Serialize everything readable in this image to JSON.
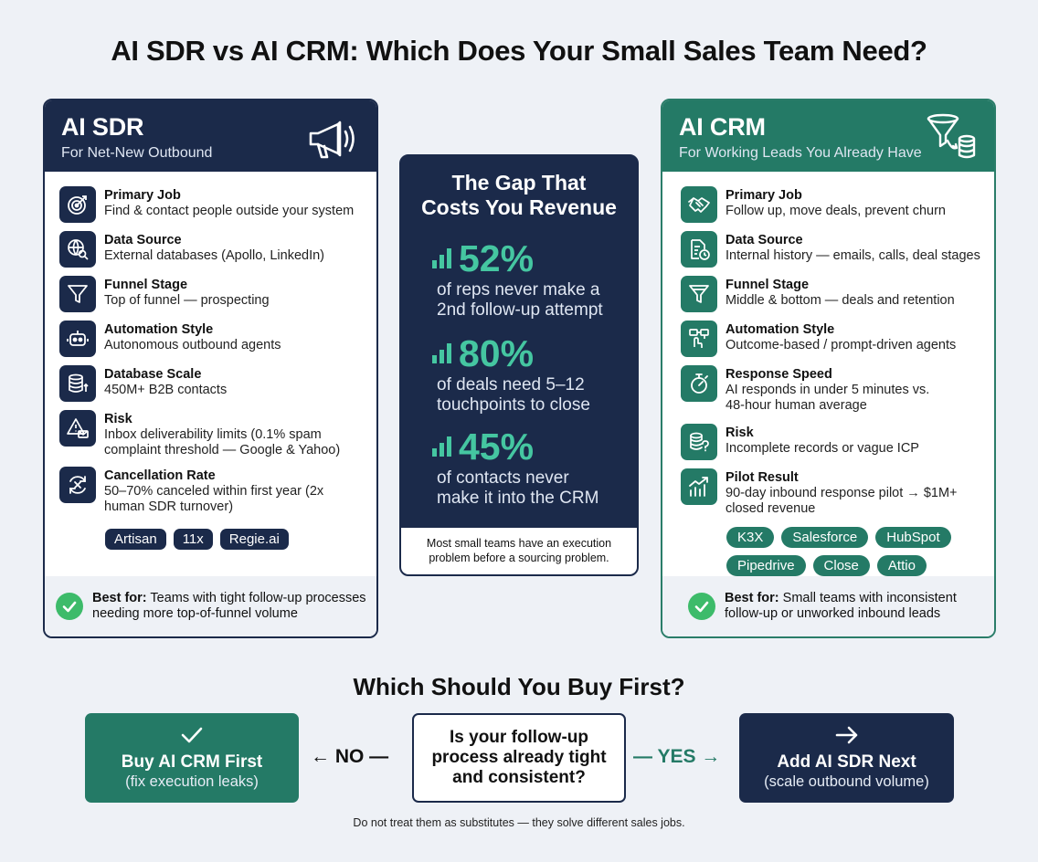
{
  "title": "AI SDR vs AI CRM: Which Does Your Small Sales Team Need?",
  "sdr": {
    "title": "AI SDR",
    "subtitle": "For Net-New Outbound",
    "items": [
      {
        "label": "Primary Job",
        "value": "Find & contact people outside your system",
        "icon": "target-icon"
      },
      {
        "label": "Data Source",
        "value": "External databases (Apollo, LinkedIn)",
        "icon": "globe-search-icon"
      },
      {
        "label": "Funnel Stage",
        "value": "Top of funnel — prospecting",
        "icon": "funnel-icon"
      },
      {
        "label": "Automation Style",
        "value": "Autonomous outbound agents",
        "icon": "robot-icon"
      },
      {
        "label": "Database Scale",
        "value": "450M+ B2B contacts",
        "icon": "database-icon"
      },
      {
        "label": "Risk",
        "value": "Inbox deliverability limits (0.1% spam complaint threshold — Google & Yahoo)",
        "icon": "warning-mail-icon"
      },
      {
        "label": "Cancellation Rate",
        "value": "50–70% canceled within first year (2x human SDR turnover)",
        "icon": "cancel-cycle-icon"
      }
    ],
    "chips": [
      "Artisan",
      "11x",
      "Regie.ai"
    ],
    "best_for_label": "Best for:",
    "best_for_text": "Teams with tight follow-up processes needing more top-of-funnel volume"
  },
  "crm": {
    "title": "AI CRM",
    "subtitle": "For Working Leads You Already Have",
    "items": [
      {
        "label": "Primary Job",
        "value": "Follow up, move deals, prevent churn",
        "icon": "handshake-icon"
      },
      {
        "label": "Data Source",
        "value": "Internal history — emails, calls, deal stages",
        "icon": "document-clock-icon"
      },
      {
        "label": "Funnel Stage",
        "value": "Middle & bottom — deals and retention",
        "icon": "funnel-icon"
      },
      {
        "label": "Automation Style",
        "value": "Outcome-based / prompt-driven agents",
        "icon": "workflow-icon"
      },
      {
        "label": "Response Speed",
        "value": "AI responds in under 5 minutes vs. 48-hour human average",
        "icon": "stopwatch-icon"
      },
      {
        "label": "Risk",
        "value": "Incomplete records or vague ICP",
        "icon": "database-question-icon"
      },
      {
        "label": "Pilot Result",
        "value": "90-day inbound response pilot → $1M+ closed revenue",
        "icon": "growth-chart-icon"
      }
    ],
    "chips": [
      "K3X",
      "Salesforce",
      "HubSpot",
      "Pipedrive",
      "Close",
      "Attio"
    ],
    "best_for_label": "Best for:",
    "best_for_text": "Small teams with inconsistent follow-up or unworked inbound leads"
  },
  "gap": {
    "title": "The Gap That Costs You Revenue",
    "stats": [
      {
        "value": "52%",
        "desc": "of reps never make a 2nd follow-up attempt"
      },
      {
        "value": "80%",
        "desc": "of deals need 5–12 touchpoints to close"
      },
      {
        "value": "45%",
        "desc": "of contacts never make it into the CRM"
      }
    ],
    "note": "Most small teams have an execution problem before a sourcing problem."
  },
  "decision": {
    "title": "Which Should You Buy First?",
    "question": "Is your follow-up process already tight and consistent?",
    "no_label": "← NO —",
    "yes_label": "— YES →",
    "no_title": "Buy AI CRM First",
    "no_sub": "(fix execution leaks)",
    "yes_title": "Add AI SDR Next",
    "yes_sub": "(scale outbound volume)",
    "footnote": "Do not treat them as substitutes — they solve different sales jobs."
  },
  "colors": {
    "navy": "#1b2a4a",
    "teal": "#247a66",
    "stat_green": "#45c6a1",
    "check_green": "#3dbb6a",
    "background": "#eef1f6"
  }
}
